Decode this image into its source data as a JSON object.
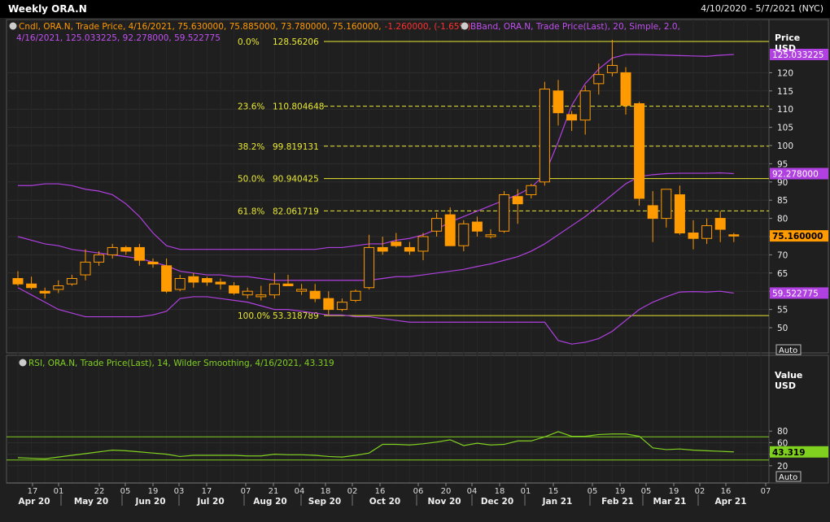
{
  "window": {
    "title": "Weekly ORA.N",
    "date_range": "4/10/2020 - 5/7/2021 (NYC)"
  },
  "price_panel": {
    "axis_title": "Price",
    "axis_unit": "USD",
    "auto_label": "Auto",
    "legend_cndl": {
      "prefix": "Cndl, ORA.N, Trade Price, 4/16/2021, 75.630000, 75.885000, 73.780000, 75.160000,",
      "change": "-1.260000, (-1.65%)"
    },
    "legend_bband": {
      "line1": "BBand, ORA.N, Trade Price(Last),  20, Simple, 2.0,",
      "line2": "4/16/2021, 125.033225, 92.278000, 59.522775"
    },
    "ticks": [
      50,
      55,
      60,
      65,
      70,
      75,
      80,
      85,
      90,
      95,
      100,
      105,
      110,
      115,
      120
    ],
    "tags": {
      "bb_upper": "125.033225",
      "bb_mid": "92.278000",
      "last_price": "75.160000",
      "bb_lower": "59.522775"
    },
    "colors": {
      "candle": "#ff9a00",
      "bband": "#b040e0",
      "fib": "#e8e832",
      "last_tag": "#ff9a00",
      "bb_tag": "#b040e0"
    }
  },
  "rsi_panel": {
    "legend": "RSI, ORA.N, Trade Price(Last),  14, Wilder Smoothing, 4/16/2021, 43.319",
    "axis_title": "Value",
    "axis_unit": "USD",
    "auto_label": "Auto",
    "ticks": [
      20,
      40,
      60,
      80
    ],
    "tag": "43.319",
    "levels": [
      70,
      30
    ],
    "color": "#80d020"
  },
  "x_axis": {
    "day_labels": [
      "17",
      "01",
      "22",
      "05",
      "19",
      "03",
      "17",
      "07",
      "21",
      "04",
      "18",
      "02",
      "16",
      "06",
      "20",
      "04",
      "18",
      "01",
      "15",
      "05",
      "19",
      "05",
      "19",
      "02",
      "16",
      "07"
    ],
    "month_labels": [
      "Apr 20",
      "May 20",
      "Jun 20",
      "Jul 20",
      "Aug 20",
      "Sep 20",
      "Oct 20",
      "Nov 20",
      "Dec 20",
      "Jan 21",
      "Feb 21",
      "Mar 21",
      "Apr 21"
    ]
  },
  "chart_data": [
    {
      "type": "candlestick",
      "title": "Weekly ORA.N",
      "ylabel": "Price USD",
      "ylim": [
        45,
        130
      ],
      "candles": [
        [
          63.5,
          65.5,
          61.5,
          62.0
        ],
        [
          62.0,
          64.0,
          60.5,
          61.0
        ],
        [
          60.0,
          61.0,
          58.0,
          59.5
        ],
        [
          60.5,
          63.0,
          59.5,
          61.5
        ],
        [
          62.0,
          64.5,
          61.5,
          63.5
        ],
        [
          64.5,
          71.5,
          63.0,
          68.0
        ],
        [
          68.0,
          71.0,
          67.0,
          70.0
        ],
        [
          70.0,
          73.0,
          69.0,
          72.0
        ],
        [
          72.0,
          72.5,
          70.0,
          71.0
        ],
        [
          72.0,
          73.0,
          67.0,
          68.5
        ],
        [
          68.0,
          69.0,
          66.5,
          67.5
        ],
        [
          67.0,
          69.0,
          59.5,
          60.0
        ],
        [
          60.5,
          64.5,
          60.0,
          63.5
        ],
        [
          64.0,
          65.0,
          61.0,
          62.5
        ],
        [
          63.5,
          64.0,
          61.5,
          62.5
        ],
        [
          62.5,
          63.5,
          60.5,
          62.0
        ],
        [
          61.5,
          62.5,
          59.0,
          59.5
        ],
        [
          59.0,
          61.0,
          58.0,
          60.0
        ],
        [
          58.5,
          61.5,
          57.5,
          59.0
        ],
        [
          59.0,
          65.0,
          58.0,
          62.0
        ],
        [
          62.0,
          64.5,
          61.5,
          61.5
        ],
        [
          60.0,
          62.0,
          59.0,
          60.5
        ],
        [
          60.0,
          62.0,
          57.0,
          58.0
        ],
        [
          58.0,
          60.0,
          53.5,
          55.0
        ],
        [
          55.0,
          58.0,
          54.5,
          57.0
        ],
        [
          57.5,
          60.5,
          57.0,
          60.0
        ],
        [
          61.0,
          75.5,
          60.5,
          72.0
        ],
        [
          72.0,
          75.0,
          70.0,
          71.0
        ],
        [
          73.5,
          76.0,
          72.0,
          72.5
        ],
        [
          72.0,
          73.5,
          70.0,
          71.0
        ],
        [
          71.0,
          76.0,
          68.5,
          75.0
        ],
        [
          76.5,
          81.5,
          75.0,
          80.0
        ],
        [
          81.0,
          83.0,
          73.0,
          72.5
        ],
        [
          72.5,
          79.5,
          71.0,
          78.5
        ],
        [
          79.0,
          80.5,
          75.0,
          76.5
        ],
        [
          75.0,
          77.0,
          74.5,
          75.5
        ],
        [
          76.5,
          87.5,
          76.0,
          86.5
        ],
        [
          86.0,
          88.0,
          78.5,
          84.0
        ],
        [
          86.5,
          89.5,
          85.5,
          89.0
        ],
        [
          90.0,
          117.5,
          89.0,
          115.5
        ],
        [
          115.0,
          118.0,
          105.5,
          109.0
        ],
        [
          108.5,
          109.5,
          104.0,
          107.0
        ],
        [
          107.0,
          116.5,
          103.0,
          115.0
        ],
        [
          117.0,
          122.5,
          114.0,
          119.5
        ],
        [
          120.0,
          129.0,
          119.0,
          122.0
        ],
        [
          120.0,
          121.5,
          108.5,
          111.0
        ],
        [
          111.5,
          112.0,
          83.5,
          85.5
        ],
        [
          83.5,
          87.5,
          73.5,
          80.0
        ],
        [
          80.0,
          88.0,
          77.5,
          88.0
        ],
        [
          86.5,
          89.0,
          75.5,
          76.0
        ],
        [
          76.0,
          79.5,
          71.5,
          74.5
        ],
        [
          74.5,
          80.0,
          73.0,
          78.0
        ],
        [
          80.0,
          82.0,
          73.5,
          77.0
        ],
        [
          75.5,
          76.0,
          73.5,
          75.2
        ]
      ],
      "bollinger": {
        "upper": [
          89,
          89,
          89.5,
          89.5,
          89,
          88,
          87.5,
          86.5,
          84,
          80.5,
          76,
          72.5,
          71.5,
          71.5,
          71.5,
          71.5,
          71.5,
          71.5,
          71.5,
          71.5,
          71.5,
          71.5,
          71.5,
          72,
          72,
          72.5,
          73,
          73,
          74,
          74.5,
          75.5,
          77,
          79,
          80.5,
          82,
          83.5,
          85,
          86.5,
          88.5,
          92,
          101,
          111,
          117,
          121,
          124,
          125,
          125,
          124.9,
          124.8,
          124.7,
          124.6,
          124.5,
          124.8,
          125.0
        ],
        "middle": [
          75,
          74,
          73,
          72.5,
          71.5,
          71,
          70.5,
          70,
          69.5,
          69,
          68,
          67,
          65.5,
          65,
          64.5,
          64.5,
          64,
          64,
          63.5,
          63,
          63,
          63,
          63,
          63,
          63,
          63,
          63,
          63.5,
          64,
          64,
          64.5,
          65,
          65.5,
          66,
          66.8,
          67.5,
          68.5,
          69.5,
          71,
          73,
          75.5,
          78,
          80.5,
          83.5,
          86.5,
          89.5,
          91.5,
          92,
          92.3,
          92.4,
          92.4,
          92.4,
          92.5,
          92.3
        ],
        "lower": [
          61,
          59,
          57,
          55,
          54,
          53,
          53,
          53,
          53,
          53,
          53.5,
          54.5,
          58,
          58.5,
          58.5,
          58,
          57.5,
          57,
          56,
          55,
          55,
          54.5,
          54,
          53.5,
          53.5,
          53,
          53,
          52.5,
          52,
          51.5,
          51.5,
          51.5,
          51.5,
          51.5,
          51.5,
          51.5,
          51.5,
          51.5,
          51.5,
          51.5,
          46.5,
          45.5,
          46,
          47,
          49,
          52,
          55,
          57,
          58.5,
          59.8,
          59.9,
          59.8,
          60.0,
          59.5
        ]
      },
      "fibonacci": [
        {
          "label": "0.0%",
          "value": 128.56206
        },
        {
          "label": "23.6%",
          "value": 110.804648
        },
        {
          "label": "38.2%",
          "value": 99.819131
        },
        {
          "label": "50.0%",
          "value": 90.940425
        },
        {
          "label": "61.8%",
          "value": 82.061719
        },
        {
          "label": "100.0%",
          "value": 53.318789
        }
      ]
    },
    {
      "type": "line",
      "title": "RSI, ORA.N, Trade Price(Last), 14, Wilder Smoothing",
      "ylim": [
        0,
        100
      ],
      "levels": [
        70,
        30
      ],
      "series": [
        {
          "name": "RSI",
          "values": [
            34,
            33,
            32,
            35,
            38,
            41,
            44,
            47,
            46,
            44,
            42,
            40,
            36,
            38,
            38,
            38,
            38,
            37,
            37,
            40,
            39,
            39,
            38,
            36,
            35,
            38,
            42,
            57,
            57,
            56,
            58,
            61,
            65,
            55,
            59,
            56,
            57,
            63,
            63,
            70,
            79,
            71,
            71,
            74,
            75,
            75,
            71,
            51,
            48,
            49,
            47,
            46,
            45,
            44
          ]
        }
      ]
    }
  ]
}
